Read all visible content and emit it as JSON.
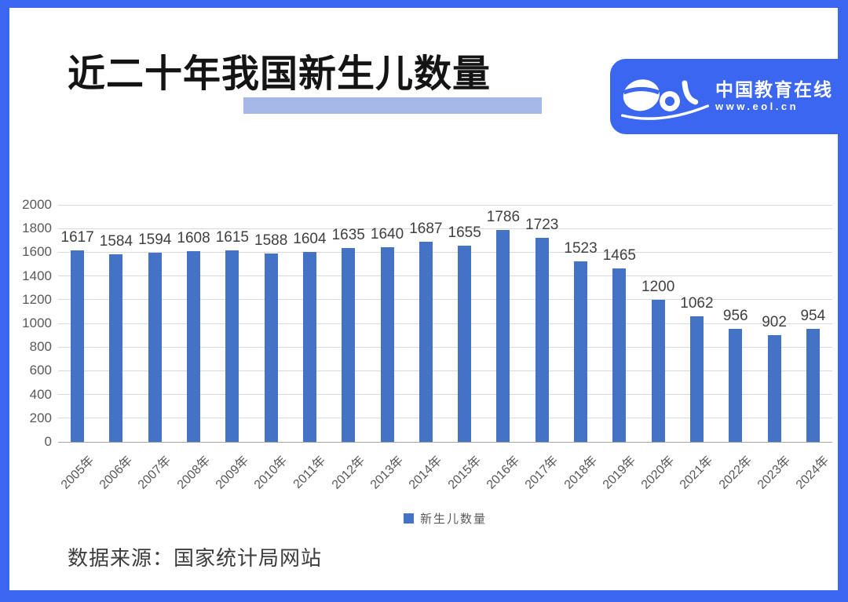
{
  "page": {
    "title": "近二十年我国新生儿数量",
    "source": "数据来源：国家统计局网站"
  },
  "logo": {
    "wordmark": "eol",
    "name": "中国教育在线",
    "url": "www.eol.cn"
  },
  "colors": {
    "frame_blue": "#3b66f0",
    "logo_bg": "#3b66f0",
    "bar_blue": "#4472c4",
    "title_highlight": "#a5b8e8",
    "gridline": "#d9d9d9",
    "axis_line": "#a6a6a6"
  },
  "chart_data": {
    "type": "bar",
    "title": "近二十年我国新生儿数量",
    "categories": [
      "2005年",
      "2006年",
      "2007年",
      "2008年",
      "2009年",
      "2010年",
      "2011年",
      "2012年",
      "2013年",
      "2014年",
      "2015年",
      "2016年",
      "2017年",
      "2018年",
      "2019年",
      "2020年",
      "2021年",
      "2022年",
      "2023年",
      "2024年"
    ],
    "values": [
      1617,
      1584,
      1594,
      1608,
      1615,
      1588,
      1604,
      1635,
      1640,
      1687,
      1655,
      1786,
      1723,
      1523,
      1465,
      1200,
      1062,
      956,
      902,
      954
    ],
    "series_name": "新生儿数量",
    "legend": [
      "新生儿数量"
    ],
    "legend_position": "bottom",
    "xlabel": "",
    "ylabel": "",
    "ylim": [
      0,
      2000
    ],
    "ytick_step": 200,
    "grid": true,
    "data_labels": true
  }
}
